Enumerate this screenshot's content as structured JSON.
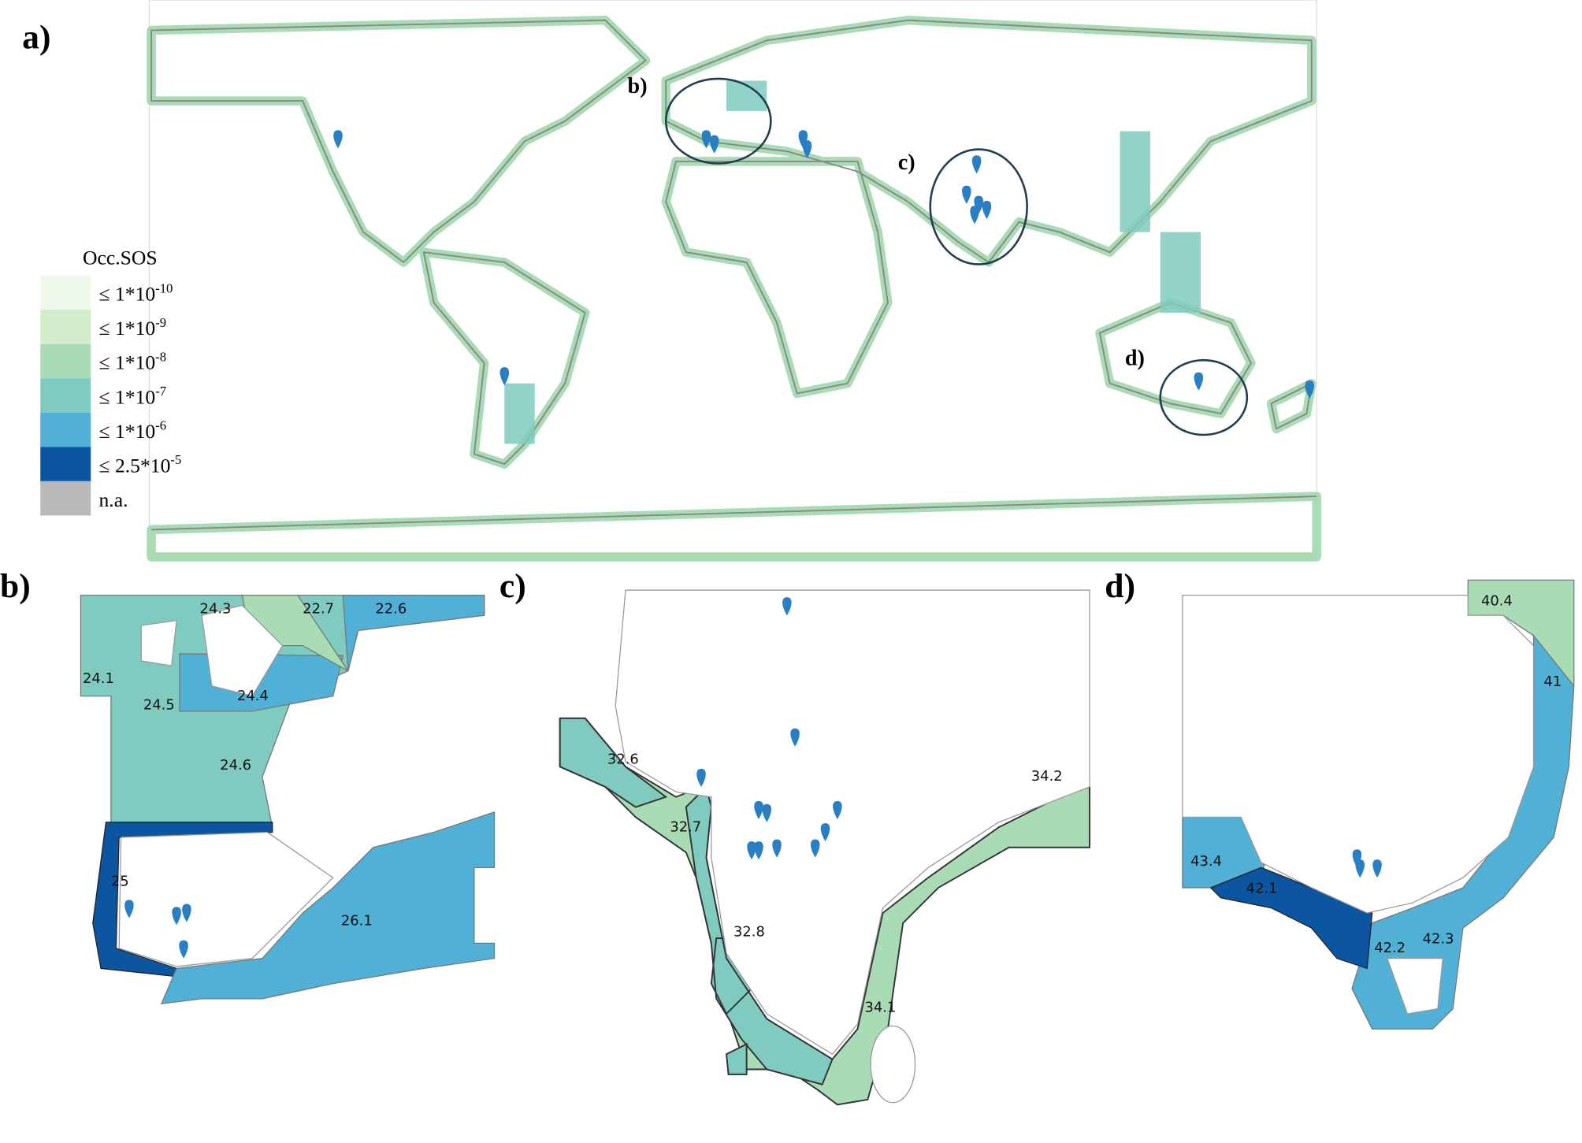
{
  "panel_labels": {
    "a": "a)",
    "b": "b)",
    "c": "c)",
    "d": "d)"
  },
  "circle_labels": {
    "b": "b)",
    "c": "c)",
    "d": "d)"
  },
  "legend": {
    "title": "Occ.SOS",
    "items": [
      {
        "label": "≤ 1*10",
        "exponent": "-10",
        "color": "#eef8e8"
      },
      {
        "label": "≤ 1*10",
        "exponent": "-9",
        "color": "#d2edcb"
      },
      {
        "label": "≤ 1*10",
        "exponent": "-8",
        "color": "#a9dcb4"
      },
      {
        "label": "≤ 1*10",
        "exponent": "-7",
        "color": "#7fcbbf"
      },
      {
        "label": "≤ 1*10",
        "exponent": "-6",
        "color": "#50b0d6"
      },
      {
        "label": "≤ 2.5*10",
        "exponent": "-5",
        "color": "#0c55a0"
      },
      {
        "label": "n.a.",
        "color": "#b9b9b9"
      }
    ]
  },
  "panel_b": {
    "regions": [
      "24.3",
      "22.7",
      "22.6",
      "24.1",
      "24.5",
      "24.4",
      "24.6",
      "25",
      "26.1"
    ]
  },
  "panel_c": {
    "regions": [
      "32.6",
      "32.7",
      "34.2",
      "32.8",
      "34.1"
    ]
  },
  "panel_d": {
    "regions": [
      "40.4",
      "41",
      "43.4",
      "42.1",
      "42.2",
      "42.3"
    ]
  }
}
